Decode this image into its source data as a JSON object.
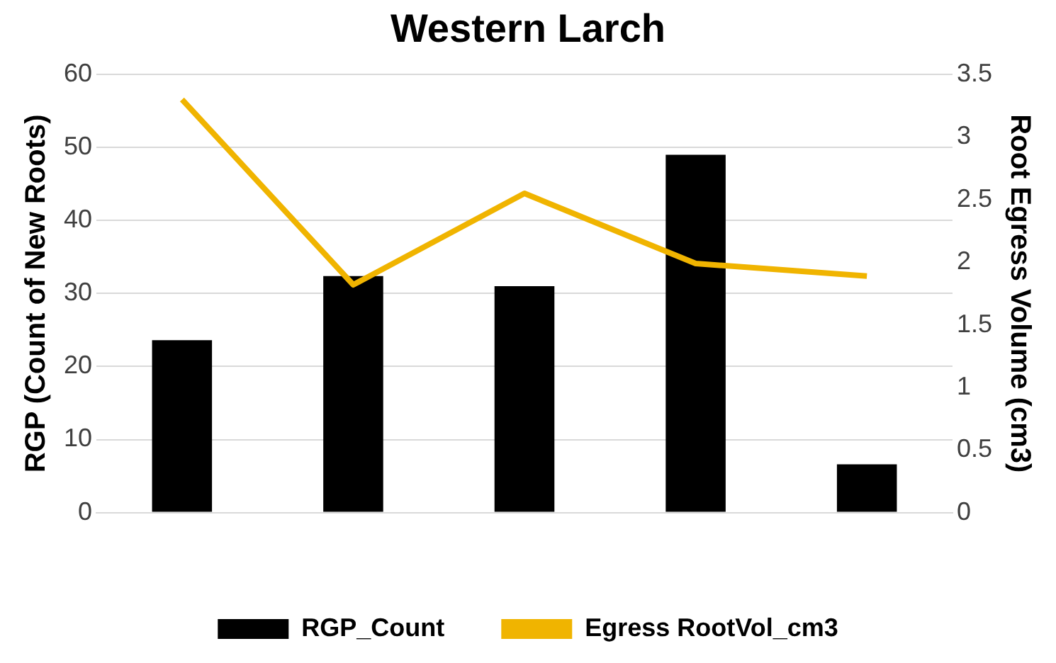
{
  "chart_data": {
    "type": "bar",
    "title": "Western Larch",
    "ylabel": "RGP (Count of New Roots)",
    "y2label": "Root Egress Volume (cm3)",
    "categories": [
      null,
      null,
      null,
      null,
      null
    ],
    "series": [
      {
        "name": "RGP_Count",
        "color": "#000000",
        "values": [
          23.6,
          32.4,
          31.0,
          49.0,
          6.6
        ]
      },
      {
        "name": "Egress RootVol_cm3",
        "type": "line",
        "axis": "y2",
        "color": "#f0b400",
        "values": [
          3.3,
          1.82,
          2.55,
          1.99,
          1.89
        ]
      }
    ],
    "ylim": [
      0,
      60
    ],
    "yticks": [
      0,
      10,
      20,
      30,
      40,
      50,
      60
    ],
    "y2lim": [
      0,
      3.5
    ],
    "y2ticks": [
      0,
      0.5,
      1,
      1.5,
      2,
      2.5,
      3,
      3.5
    ],
    "grid": "y",
    "legend": "bottom",
    "marker": "none"
  }
}
